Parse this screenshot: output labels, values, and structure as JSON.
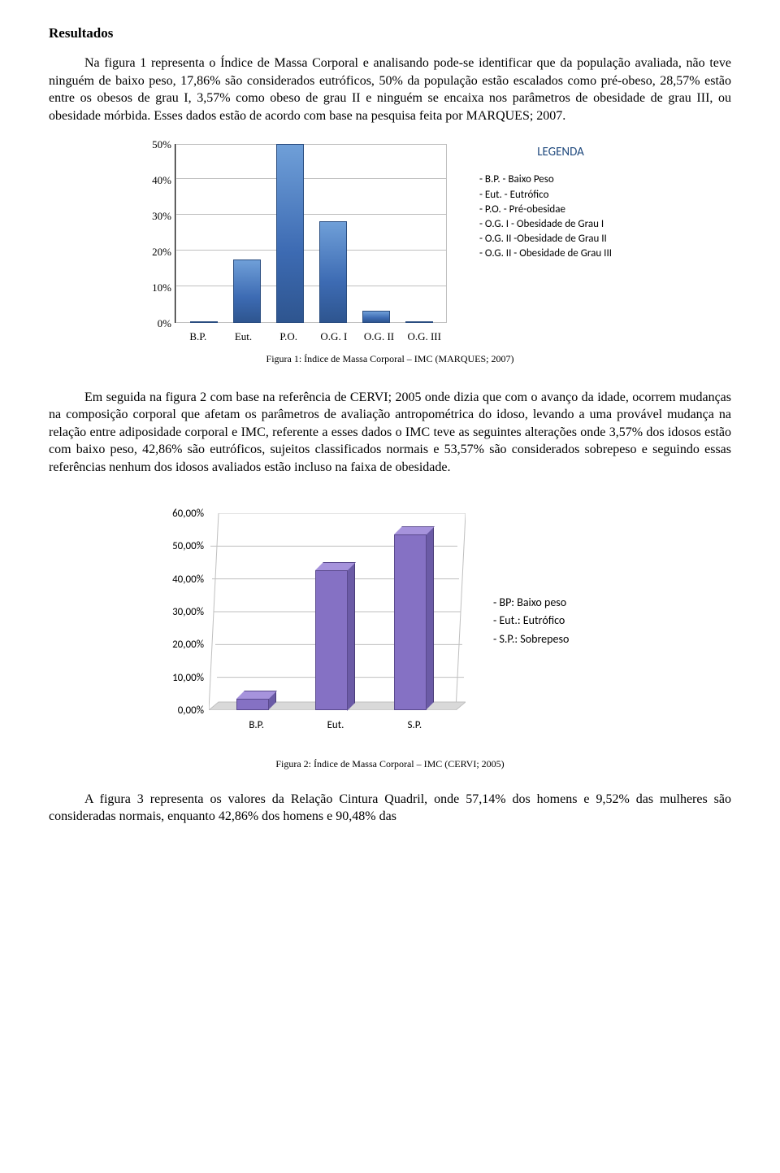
{
  "section_title": "Resultados",
  "para1": "Na figura 1 representa o Índice de Massa Corporal e analisando pode-se identificar que da população avaliada, não teve ninguém de baixo peso, 17,86% são considerados eutróficos, 50% da população estão escalados como pré-obeso, 28,57% estão entre os obesos de grau I, 3,57% como obeso de grau II e ninguém se encaixa nos parâmetros de obesidade de grau III, ou obesidade mórbida. Esses dados estão de acordo com base na pesquisa feita por MARQUES; 2007.",
  "chart1": {
    "type": "bar",
    "categories": [
      "B.P.",
      "Eut.",
      "P.O.",
      "O.G. I",
      "O.G. II",
      "O.G. III"
    ],
    "values": [
      0,
      17.86,
      50,
      28.57,
      3.57,
      0
    ],
    "ylim": [
      0,
      50
    ],
    "ytick_step": 10,
    "ytick_labels": [
      "0%",
      "10%",
      "20%",
      "30%",
      "40%",
      "50%"
    ],
    "bar_color": "#4f81bd",
    "grid_color": "#bfbfbf",
    "label_fontsize": 13,
    "legend_title": "LEGENDA",
    "legend_title_color": "#1f497d",
    "legend_lines": [
      "- B.P. - Baixo Peso",
      "- Eut. - Eutrófico",
      "- P.O. - Pré-obesidae",
      "- O.G. I - Obesidade de Grau I",
      "- O.G. II -Obesidade de Grau II",
      "- O.G. II - Obesidade de Grau III"
    ],
    "caption": "Figura 1: Índice de Massa Corporal – IMC (MARQUES; 2007)"
  },
  "para2": "Em seguida na figura 2 com base na referência de CERVI; 2005 onde dizia que com o avanço da idade, ocorrem mudanças na composição corporal que afetam os parâmetros de avaliação antropométrica do idoso, levando a uma provável mudança na relação entre adiposidade corporal e IMC, referente a esses dados o IMC teve as seguintes alterações onde 3,57% dos idosos estão com baixo peso, 42,86% são eutróficos, sujeitos classificados normais e 53,57% são considerados sobrepeso e seguindo essas referências nenhum dos idosos avaliados estão incluso na faixa de obesidade.",
  "chart2": {
    "type": "bar3d",
    "categories": [
      "B.P.",
      "Eut.",
      "S.P."
    ],
    "values": [
      3.57,
      42.86,
      53.57
    ],
    "ylim": [
      0,
      60
    ],
    "ytick_step": 10,
    "ytick_labels": [
      "0,00%",
      "10,00%",
      "20,00%",
      "30,00%",
      "40,00%",
      "50,00%",
      "60,00%"
    ],
    "bar_front_color": "#8571c4",
    "bar_side_color": "#6b5ba6",
    "bar_top_color": "#a693dc",
    "floor_color": "#d9d9d9",
    "label_fontsize": 13,
    "legend_lines": [
      "- BP: Baixo peso",
      "- Eut.: Eutrófico",
      "- S.P.: Sobrepeso"
    ],
    "caption": "Figura 2: Índice de Massa Corporal – IMC (CERVI; 2005)"
  },
  "para3": "A figura 3 representa os valores da Relação Cintura Quadril, onde 57,14% dos homens e 9,52% das mulheres são consideradas normais, enquanto 42,86% dos homens e 90,48% das"
}
